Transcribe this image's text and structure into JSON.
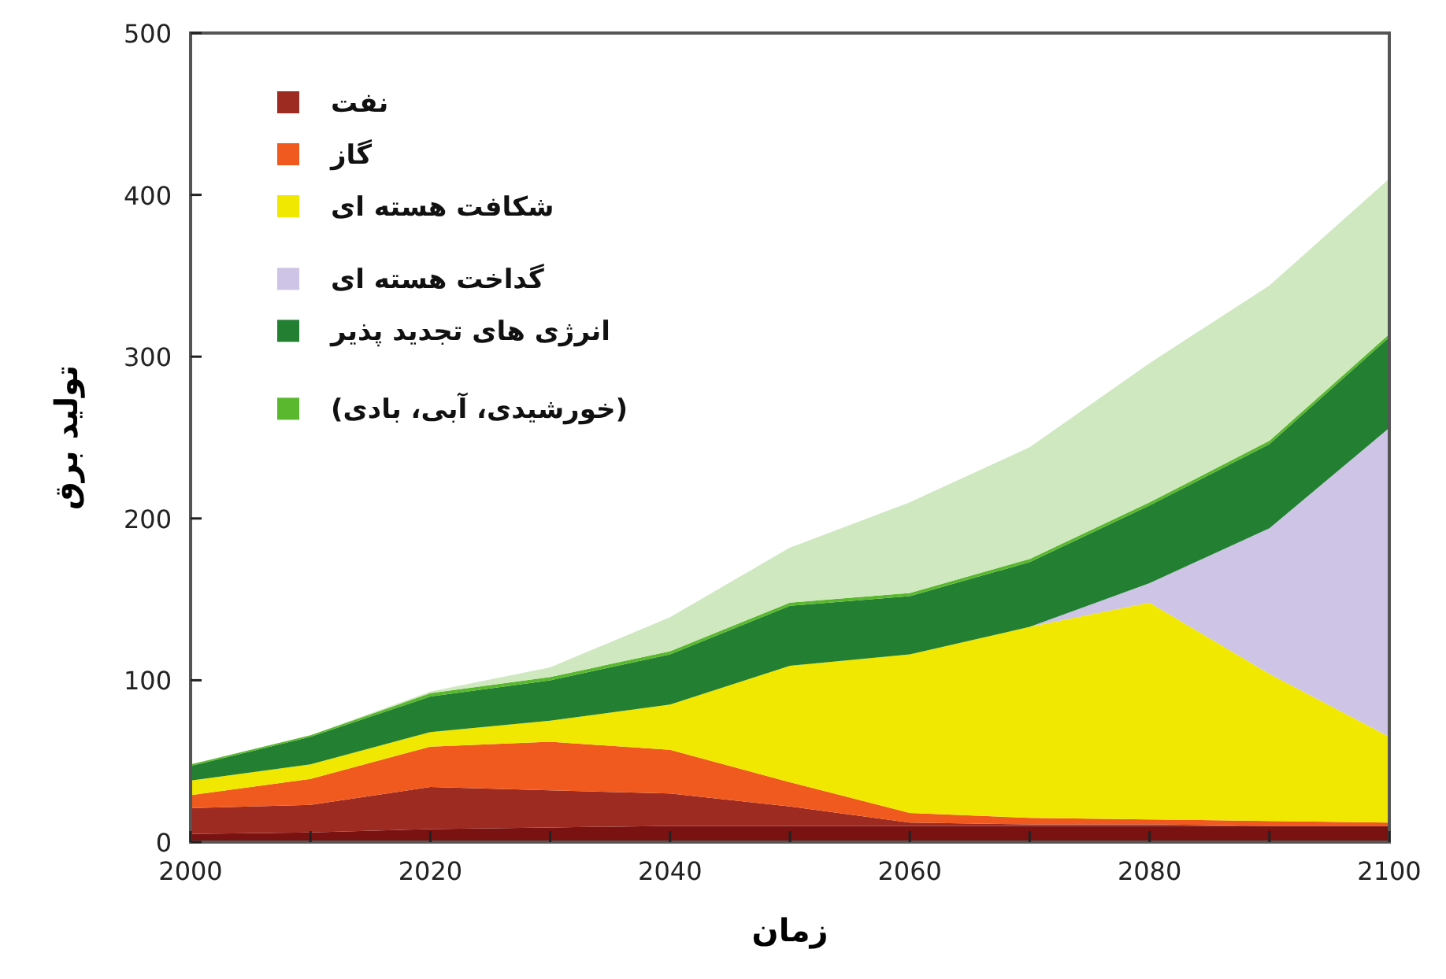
{
  "chart_data": {
    "type": "area",
    "stacked": true,
    "xlabel": "زمان",
    "ylabel": "تولید برق",
    "x": [
      2000,
      2010,
      2020,
      2030,
      2040,
      2050,
      2060,
      2070,
      2080,
      2090,
      2100
    ],
    "xlim": [
      2000,
      2100
    ],
    "xticks": [
      2000,
      {
        "value": 2010,
        "label": null
      },
      2020,
      {
        "value": 2030,
        "label": null
      },
      2040,
      {
        "value": 2050,
        "label": null
      },
      2060,
      {
        "value": 2070,
        "label": null
      },
      2080,
      {
        "value": 2090,
        "label": null
      },
      2100
    ],
    "ylim": [
      0,
      500
    ],
    "yticks": [
      0,
      100,
      200,
      300,
      400,
      500
    ],
    "grid": false,
    "legend": "top left",
    "series": [
      {
        "color": "#7a1212",
        "values": [
          5,
          6,
          8,
          9,
          10,
          10,
          10,
          10,
          10,
          10,
          10
        ]
      },
      {
        "name": "نفت",
        "color": "#9e2b22",
        "values": [
          16,
          17,
          26,
          23,
          20,
          12,
          2,
          1,
          1,
          0,
          0
        ]
      },
      {
        "name": "گاز",
        "color": "#f05a1e",
        "values": [
          8,
          16,
          25,
          30,
          27,
          15,
          6,
          4,
          3,
          3,
          2
        ]
      },
      {
        "name": "شکافت هسته ای",
        "color": "#f0e800",
        "values": [
          9,
          9,
          9,
          13,
          28,
          72,
          98,
          118,
          134,
          91,
          53
        ]
      },
      {
        "name": "گداخت هسته ای",
        "color": "#cdc4e6",
        "values": [
          0,
          0,
          0,
          0,
          0,
          0,
          0,
          0,
          12,
          90,
          191
        ]
      },
      {
        "name": "انرژی های تجدید پذیر",
        "color": "#238033",
        "values": [
          9,
          17,
          22,
          25,
          31,
          37,
          36,
          40,
          48,
          52,
          56
        ]
      },
      {
        "name": "(خورشیدی، آبی، بادی)",
        "color": "#5ab82e",
        "values": [
          1,
          1,
          2,
          2,
          2,
          2,
          2,
          2,
          2,
          2,
          2
        ]
      },
      {
        "color": "#cfe8c0",
        "values": [
          0,
          0,
          1,
          6,
          21,
          34,
          56,
          69,
          86,
          96,
          96
        ]
      }
    ]
  }
}
